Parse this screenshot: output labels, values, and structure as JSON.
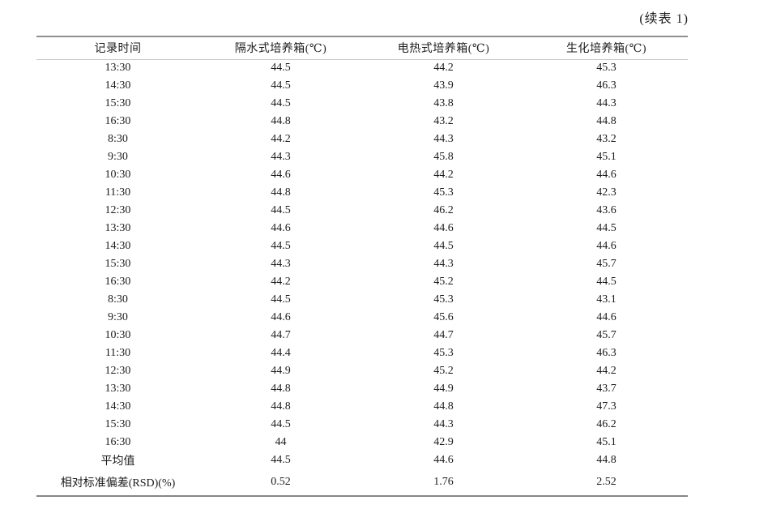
{
  "page": {
    "continuation_label": "(续表 1)"
  },
  "table": {
    "columns": [
      "记录时间",
      "隔水式培养箱(℃)",
      "电热式培养箱(℃)",
      "生化培养箱(℃)"
    ],
    "rows": [
      [
        "13:30",
        "44.5",
        "44.2",
        "45.3"
      ],
      [
        "14:30",
        "44.5",
        "43.9",
        "46.3"
      ],
      [
        "15:30",
        "44.5",
        "43.8",
        "44.3"
      ],
      [
        "16:30",
        "44.8",
        "43.2",
        "44.8"
      ],
      [
        "8:30",
        "44.2",
        "44.3",
        "43.2"
      ],
      [
        "9:30",
        "44.3",
        "45.8",
        "45.1"
      ],
      [
        "10:30",
        "44.6",
        "44.2",
        "44.6"
      ],
      [
        "11:30",
        "44.8",
        "45.3",
        "42.3"
      ],
      [
        "12:30",
        "44.5",
        "46.2",
        "43.6"
      ],
      [
        "13:30",
        "44.6",
        "44.6",
        "44.5"
      ],
      [
        "14:30",
        "44.5",
        "44.5",
        "44.6"
      ],
      [
        "15:30",
        "44.3",
        "44.3",
        "45.7"
      ],
      [
        "16:30",
        "44.2",
        "45.2",
        "44.5"
      ],
      [
        "8:30",
        "44.5",
        "45.3",
        "43.1"
      ],
      [
        "9:30",
        "44.6",
        "45.6",
        "44.6"
      ],
      [
        "10:30",
        "44.7",
        "44.7",
        "45.7"
      ],
      [
        "11:30",
        "44.4",
        "45.3",
        "46.3"
      ],
      [
        "12:30",
        "44.9",
        "45.2",
        "44.2"
      ],
      [
        "13:30",
        "44.8",
        "44.9",
        "43.7"
      ],
      [
        "14:30",
        "44.8",
        "44.8",
        "47.3"
      ],
      [
        "15:30",
        "44.5",
        "44.3",
        "46.2"
      ],
      [
        "16:30",
        "44",
        "42.9",
        "45.1"
      ],
      [
        "平均值",
        "44.5",
        "44.6",
        "44.8"
      ],
      [
        "相对标准偏差(RSD)(%)",
        "0.52",
        "1.76",
        "2.52"
      ]
    ]
  }
}
